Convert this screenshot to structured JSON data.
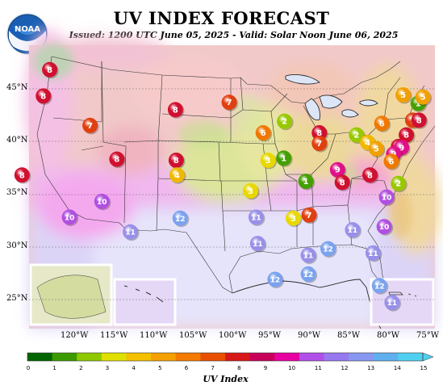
{
  "title": "UV INDEX FORECAST",
  "subtitle": "Issued: 1200 UTC June 05, 2025 - Valid: Solar Noon June 06, 2025",
  "logo_text": "NOAA",
  "legend_title": "UV Index",
  "latitude_labels": [
    "45°N",
    "40°N",
    "35°N",
    "30°N",
    "25°N"
  ],
  "longitude_labels": [
    "120°W",
    "115°W",
    "110°W",
    "105°W",
    "100°W",
    "95°W",
    "90°W",
    "85°W",
    "80°W",
    "75°W"
  ],
  "legend_ticks": [
    "0",
    "1",
    "2",
    "3",
    "4",
    "5",
    "6",
    "7",
    "8",
    "9",
    "10",
    "11",
    "12",
    "13",
    "14",
    "15"
  ],
  "legend_colors": [
    "#006600",
    "#3c9a00",
    "#8ec800",
    "#e0e000",
    "#f4c000",
    "#f4a000",
    "#f47a00",
    "#e85000",
    "#d81818",
    "#c8005a",
    "#e800a0",
    "#b050e8",
    "#9878f0",
    "#8898f0",
    "#60b0f0",
    "#50d0f0"
  ],
  "marker_colors": {
    "1": "#44a000",
    "2": "#98c800",
    "3": "#e8d800",
    "4": "#f0b800",
    "5": "#f0a000",
    "6": "#f07800",
    "7": "#e04010",
    "8": "#d01030",
    "9": "#e0108a",
    "10": "#b050e0",
    "11": "#9890e8",
    "12": "#7aa2ee"
  },
  "points": [
    {
      "label": "8",
      "x": -123.0,
      "y": 46.8
    },
    {
      "label": "8",
      "x": -123.8,
      "y": 44.3
    },
    {
      "label": "7",
      "x": -117.9,
      "y": 41.5
    },
    {
      "label": "8",
      "x": -107.1,
      "y": 43.0
    },
    {
      "label": "7",
      "x": -100.3,
      "y": 43.7
    },
    {
      "label": "8",
      "x": -126.5,
      "y": 36.8
    },
    {
      "label": "8",
      "x": -114.5,
      "y": 38.3
    },
    {
      "label": "8",
      "x": -107.0,
      "y": 38.2
    },
    {
      "label": "4",
      "x": -106.9,
      "y": 36.8
    },
    {
      "label": "10",
      "x": -116.4,
      "y": 34.3
    },
    {
      "label": "10",
      "x": -120.5,
      "y": 32.8
    },
    {
      "label": "11",
      "x": -112.8,
      "y": 31.4
    },
    {
      "label": "12",
      "x": -106.5,
      "y": 32.7
    },
    {
      "label": "11",
      "x": -96.9,
      "y": 32.8
    },
    {
      "label": "11",
      "x": -96.7,
      "y": 30.3
    },
    {
      "label": "3",
      "x": -97.6,
      "y": 35.3
    },
    {
      "label": "6",
      "x": -96.0,
      "y": 40.8
    },
    {
      "label": "3",
      "x": -95.4,
      "y": 38.2
    },
    {
      "label": "1",
      "x": -93.4,
      "y": 38.4
    },
    {
      "label": "2",
      "x": -93.3,
      "y": 41.9
    },
    {
      "label": "1",
      "x": -90.6,
      "y": 36.2
    },
    {
      "label": "3",
      "x": -92.2,
      "y": 32.7
    },
    {
      "label": "7",
      "x": -90.2,
      "y": 33.0
    },
    {
      "label": "8",
      "x": -88.9,
      "y": 40.8
    },
    {
      "label": "7",
      "x": -88.9,
      "y": 39.8
    },
    {
      "label": "9",
      "x": -86.6,
      "y": 37.3
    },
    {
      "label": "8",
      "x": -86.0,
      "y": 36.1
    },
    {
      "label": "2",
      "x": -84.2,
      "y": 40.6
    },
    {
      "label": "4",
      "x": -82.8,
      "y": 39.9
    },
    {
      "label": "5",
      "x": -81.7,
      "y": 39.3
    },
    {
      "label": "8",
      "x": -82.5,
      "y": 36.8
    },
    {
      "label": "11",
      "x": -84.7,
      "y": 31.6
    },
    {
      "label": "11",
      "x": -90.3,
      "y": 29.2
    },
    {
      "label": "12",
      "x": -87.8,
      "y": 29.8
    },
    {
      "label": "12",
      "x": -90.3,
      "y": 27.4
    },
    {
      "label": "12",
      "x": -94.5,
      "y": 26.9
    },
    {
      "label": "10",
      "x": -80.4,
      "y": 34.7
    },
    {
      "label": "10",
      "x": -80.7,
      "y": 31.9
    },
    {
      "label": "11",
      "x": -82.1,
      "y": 29.4
    },
    {
      "label": "12",
      "x": -81.3,
      "y": 26.3
    },
    {
      "label": "11",
      "x": -79.7,
      "y": 24.7
    },
    {
      "label": "6",
      "x": -81.0,
      "y": 41.7
    },
    {
      "label": "5",
      "x": -78.3,
      "y": 44.4
    },
    {
      "label": "1",
      "x": -76.4,
      "y": 43.6
    },
    {
      "label": "5",
      "x": -75.8,
      "y": 44.2
    },
    {
      "label": "7",
      "x": -77.1,
      "y": 42.0
    },
    {
      "label": "8",
      "x": -76.3,
      "y": 42.0
    },
    {
      "label": "8",
      "x": -77.9,
      "y": 40.6
    },
    {
      "label": "8",
      "x": -78.9,
      "y": 39.5
    },
    {
      "label": "9",
      "x": -78.5,
      "y": 39.4
    },
    {
      "label": "9",
      "x": -79.5,
      "y": 38.8
    },
    {
      "label": "6",
      "x": -79.8,
      "y": 38.1
    },
    {
      "label": "2",
      "x": -78.9,
      "y": 36.0
    }
  ]
}
